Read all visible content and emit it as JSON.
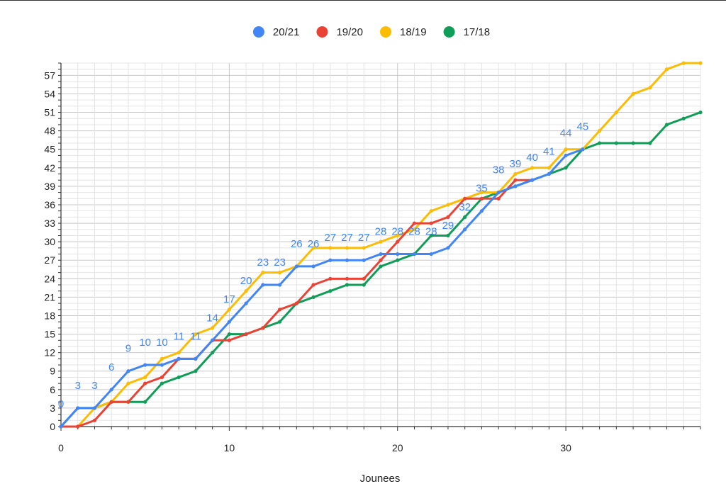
{
  "chart_data": {
    "type": "line",
    "title": "",
    "xlabel": "Jounees",
    "ylabel": "",
    "xlim": [
      0,
      38
    ],
    "ylim": [
      0,
      59
    ],
    "x_ticks": [
      0,
      10,
      20,
      30
    ],
    "y_ticks": [
      0,
      3,
      6,
      9,
      12,
      15,
      18,
      21,
      24,
      27,
      30,
      33,
      36,
      39,
      42,
      45,
      48,
      51,
      54,
      57
    ],
    "grid": true,
    "legend_position": "top",
    "series": [
      {
        "name": "20/21",
        "color": "#4285f4",
        "x": [
          0,
          1,
          2,
          3,
          4,
          5,
          6,
          7,
          8,
          9,
          10,
          11,
          12,
          13,
          14,
          15,
          16,
          17,
          18,
          19,
          20,
          21,
          22,
          23,
          24,
          25,
          26,
          27,
          28,
          29,
          30,
          31
        ],
        "values": [
          0,
          3,
          3,
          6,
          9,
          10,
          10,
          11,
          11,
          14,
          17,
          20,
          23,
          23,
          26,
          26,
          27,
          27,
          27,
          28,
          28,
          28,
          28,
          29,
          32,
          35,
          38,
          39,
          40,
          41,
          44,
          45
        ]
      },
      {
        "name": "19/20",
        "color": "#ea4335",
        "x": [
          0,
          1,
          2,
          3,
          4,
          5,
          6,
          7,
          8,
          9,
          10,
          11,
          12,
          13,
          14,
          15,
          16,
          17,
          18,
          19,
          20,
          21,
          22,
          23,
          24,
          25,
          26,
          27,
          28
        ],
        "values": [
          0,
          0,
          1,
          4,
          4,
          7,
          8,
          11,
          11,
          14,
          14,
          15,
          16,
          19,
          20,
          23,
          24,
          24,
          24,
          27,
          30,
          33,
          33,
          34,
          37,
          37,
          37,
          40,
          40
        ]
      },
      {
        "name": "18/19",
        "color": "#fbbc04",
        "x": [
          0,
          1,
          2,
          3,
          4,
          5,
          6,
          7,
          8,
          9,
          10,
          11,
          12,
          13,
          14,
          15,
          16,
          17,
          18,
          19,
          20,
          21,
          22,
          23,
          24,
          25,
          26,
          27,
          28,
          29,
          30,
          31,
          32,
          33,
          34,
          35,
          36,
          37,
          38
        ],
        "values": [
          0,
          0,
          3,
          4,
          7,
          8,
          11,
          12,
          15,
          16,
          19,
          22,
          25,
          25,
          26,
          29,
          29,
          29,
          29,
          30,
          31,
          32,
          35,
          36,
          37,
          38,
          38,
          41,
          42,
          42,
          45,
          45,
          48,
          51,
          54,
          55,
          58,
          59,
          59
        ]
      },
      {
        "name": "17/18",
        "color": "#0f9d58",
        "x": [
          0,
          1,
          2,
          3,
          4,
          5,
          6,
          7,
          8,
          9,
          10,
          11,
          12,
          13,
          14,
          15,
          16,
          17,
          18,
          19,
          20,
          21,
          22,
          23,
          24,
          25,
          26,
          27,
          28,
          29,
          30,
          31,
          32,
          33,
          34,
          35,
          36,
          37,
          38
        ],
        "values": [
          0,
          3,
          3,
          4,
          4,
          4,
          7,
          8,
          9,
          12,
          15,
          15,
          16,
          17,
          20,
          21,
          22,
          23,
          23,
          26,
          27,
          28,
          31,
          31,
          34,
          37,
          38,
          39,
          40,
          41,
          42,
          45,
          46,
          46,
          46,
          46,
          49,
          50,
          51
        ]
      }
    ],
    "data_labels": {
      "series": "20/21",
      "values": [
        "0",
        "3",
        "3",
        "6",
        "9",
        "10",
        "10",
        "11",
        "11",
        "14",
        "17",
        "20",
        "23",
        "23",
        "26",
        "26",
        "27",
        "27",
        "27",
        "28",
        "28",
        "28",
        "28",
        "29",
        "32",
        "35",
        "38",
        "39",
        "40",
        "41",
        "44",
        "45"
      ]
    }
  }
}
